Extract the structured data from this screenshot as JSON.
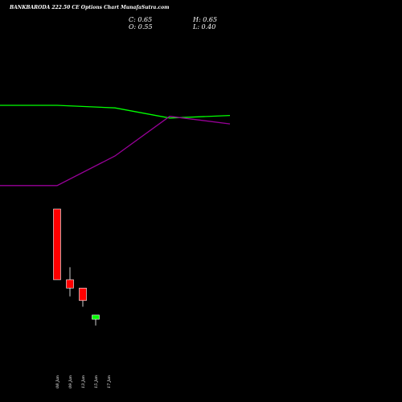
{
  "header": {
    "title": "BANKBARODA 222.50 CE Options Chart MunafaSutra.com",
    "close_label": "C: 0.65",
    "high_label": "H: 0.65",
    "open_label": "O: 0.55",
    "low_label": "L: 0.40"
  },
  "chart_data": {
    "type": "candlestick",
    "categories": [
      "08 Jan",
      "09 Jan",
      "13 Jan",
      "15 Jan",
      "17 Jan"
    ],
    "candles": [
      {
        "date": "",
        "open": null,
        "high": null,
        "low": null,
        "close": null,
        "color": "#000000"
      },
      {
        "date": "08 Jan",
        "open": 3.2,
        "high": 3.2,
        "low": 1.5,
        "close": 1.5,
        "color": "#ff0000"
      },
      {
        "date": "09 Jan",
        "open": 1.5,
        "high": 1.8,
        "low": 1.1,
        "close": 1.3,
        "color": "#ff0000"
      },
      {
        "date": "13 Jan",
        "open": 1.3,
        "high": 1.3,
        "low": 0.85,
        "close": 1.0,
        "color": "#ff0000"
      },
      {
        "date": "15 Jan",
        "open": 0.55,
        "high": 0.65,
        "low": 0.4,
        "close": 0.65,
        "color": "#00ff00"
      }
    ],
    "series": [
      {
        "color": "#00ff00",
        "values": [
          1.0,
          1.0,
          0.97,
          0.85,
          0.88
        ]
      },
      {
        "color": "#990099",
        "values": [
          0.05,
          0.05,
          0.4,
          0.87,
          0.78
        ]
      }
    ],
    "colors": {
      "up": "#00ff00",
      "down": "#ff0000",
      "background": "#000000"
    }
  }
}
